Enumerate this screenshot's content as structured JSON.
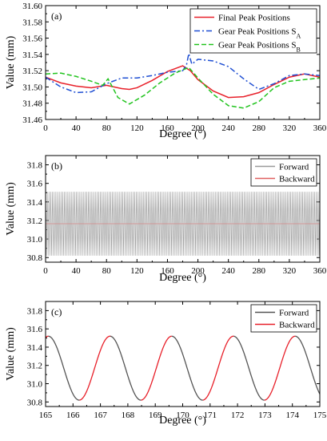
{
  "chart_data": [
    {
      "type": "line",
      "panel": "(a)",
      "xlabel": "Degree (°)",
      "ylabel": "Value (mm)",
      "xlim": [
        0,
        360
      ],
      "ylim": [
        31.46,
        31.6
      ],
      "xticks": [
        0,
        40,
        80,
        120,
        160,
        200,
        240,
        280,
        320,
        360
      ],
      "yticks": [
        31.46,
        31.48,
        31.5,
        31.52,
        31.54,
        31.56,
        31.58,
        31.6
      ],
      "legend_position": "top-right",
      "series": [
        {
          "name": "Final Peak Positions",
          "color": "#e8202a",
          "style": "solid",
          "x": [
            0,
            20,
            40,
            60,
            80,
            100,
            110,
            120,
            140,
            160,
            180,
            190,
            200,
            220,
            240,
            260,
            280,
            300,
            320,
            340,
            360
          ],
          "y": [
            31.512,
            31.505,
            31.501,
            31.499,
            31.502,
            31.498,
            31.497,
            31.499,
            31.508,
            31.519,
            31.526,
            31.52,
            31.509,
            31.495,
            31.487,
            31.488,
            31.493,
            31.503,
            31.512,
            31.516,
            31.512
          ]
        },
        {
          "name": "Gear Peak Positions S",
          "subscript": "A",
          "color": "#1f4fd3",
          "style": "dashdot",
          "x": [
            0,
            20,
            40,
            60,
            80,
            100,
            120,
            140,
            160,
            180,
            185,
            188,
            192,
            200,
            220,
            240,
            260,
            280,
            300,
            320,
            340,
            360
          ],
          "y": [
            31.512,
            31.5,
            31.493,
            31.494,
            31.504,
            31.511,
            31.511,
            31.514,
            31.518,
            31.52,
            31.527,
            31.541,
            31.528,
            31.534,
            31.532,
            31.525,
            31.51,
            31.497,
            31.504,
            31.514,
            31.516,
            31.514
          ]
        },
        {
          "name": "Gear Peak Positions S",
          "subscript": "B",
          "color": "#22c41f",
          "style": "dashed",
          "x": [
            0,
            20,
            40,
            60,
            75,
            82,
            95,
            110,
            130,
            150,
            170,
            188,
            200,
            220,
            240,
            260,
            280,
            300,
            320,
            340,
            360
          ],
          "y": [
            31.516,
            31.517,
            31.513,
            31.507,
            31.502,
            31.51,
            31.487,
            31.479,
            31.49,
            31.505,
            31.517,
            31.524,
            31.511,
            31.491,
            31.477,
            31.474,
            31.482,
            31.499,
            31.507,
            31.509,
            31.511
          ]
        }
      ]
    },
    {
      "type": "line",
      "panel": "(b)",
      "xlabel": "Degree (°)",
      "ylabel": "Value (mm)",
      "xlim": [
        0,
        360
      ],
      "ylim": [
        30.75,
        31.9
      ],
      "xticks": [
        0,
        40,
        80,
        120,
        160,
        200,
        240,
        280,
        320,
        360
      ],
      "yticks": [
        30.8,
        31.0,
        31.2,
        31.4,
        31.6,
        31.8
      ],
      "legend_position": "top-right",
      "oscillation": {
        "period_deg": 2.25,
        "max": 31.51,
        "min": 30.82
      },
      "series": [
        {
          "name": "Forward",
          "color": "#9a9a9a"
        },
        {
          "name": "Backward",
          "color": "#e06060"
        }
      ]
    },
    {
      "type": "line",
      "panel": "(c)",
      "xlabel": "Degree (°)",
      "ylabel": "Value (mm)",
      "xlim": [
        165,
        175
      ],
      "ylim": [
        30.75,
        31.9
      ],
      "xticks": [
        165,
        166,
        167,
        168,
        169,
        170,
        171,
        172,
        173,
        174,
        175
      ],
      "yticks": [
        30.8,
        31.0,
        31.2,
        31.4,
        31.6,
        31.8
      ],
      "legend_position": "top-right",
      "oscillation": {
        "period_deg": 2.25,
        "max": 31.52,
        "min": 30.82,
        "first_peak": 165.1
      },
      "series": [
        {
          "name": "Forward",
          "color": "#555555"
        },
        {
          "name": "Backward",
          "color": "#e8202a"
        }
      ]
    }
  ]
}
